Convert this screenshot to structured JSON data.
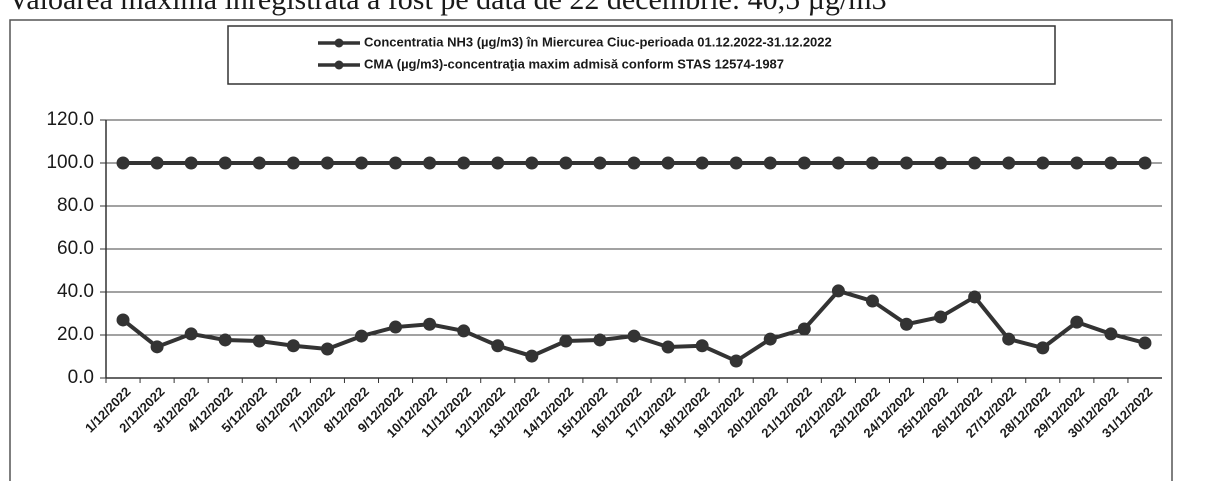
{
  "caption": "Valoarea maximă înregistrată a fost pe data de 22 decembrie: 40,5 µg/m3",
  "chart_data": {
    "type": "line",
    "categories": [
      "1/12/2022",
      "2/12/2022",
      "3/12/2022",
      "4/12/2022",
      "5/12/2022",
      "6/12/2022",
      "7/12/2022",
      "8/12/2022",
      "9/12/2022",
      "10/12/2022",
      "11/12/2022",
      "12/12/2022",
      "13/12/2022",
      "14/12/2022",
      "15/12/2022",
      "16/12/2022",
      "17/12/2022",
      "18/12/2022",
      "19/12/2022",
      "20/12/2022",
      "21/12/2022",
      "22/12/2022",
      "23/12/2022",
      "24/12/2022",
      "25/12/2022",
      "26/12/2022",
      "27/12/2022",
      "28/12/2022",
      "29/12/2022",
      "30/12/2022",
      "31/12/2022"
    ],
    "series": [
      {
        "name": "Concentratia NH3 (µg/m3) în Miercurea Ciuc-perioada 01.12.2022-31.12.2022",
        "color": "#333333",
        "values": [
          27,
          14.5,
          20.5,
          17.7,
          17.2,
          15,
          13.5,
          19.5,
          23.7,
          25,
          21.9,
          15,
          10.2,
          17.2,
          17.7,
          19.5,
          14.4,
          15,
          7.9,
          18.1,
          22.8,
          40.5,
          35.8,
          25,
          28.4,
          37.7,
          18.1,
          14,
          26,
          20.5,
          16.3
        ]
      },
      {
        "name": "CMA (µg/m3)-concentraţia maxim admisă conform STAS 12574-1987",
        "color": "#333333",
        "values": [
          100,
          100,
          100,
          100,
          100,
          100,
          100,
          100,
          100,
          100,
          100,
          100,
          100,
          100,
          100,
          100,
          100,
          100,
          100,
          100,
          100,
          100,
          100,
          100,
          100,
          100,
          100,
          100,
          100,
          100,
          100
        ]
      }
    ],
    "ylim": [
      0,
      120
    ],
    "yticks": [
      {
        "value": 0,
        "label": "0.0"
      },
      {
        "value": 20,
        "label": "20.0"
      },
      {
        "value": 40,
        "label": "40.0"
      },
      {
        "value": 60,
        "label": "60.0"
      },
      {
        "value": 80,
        "label": "80.0"
      },
      {
        "value": 100,
        "label": "100.0"
      },
      {
        "value": 120,
        "label": "120.0"
      }
    ],
    "grid": true
  }
}
